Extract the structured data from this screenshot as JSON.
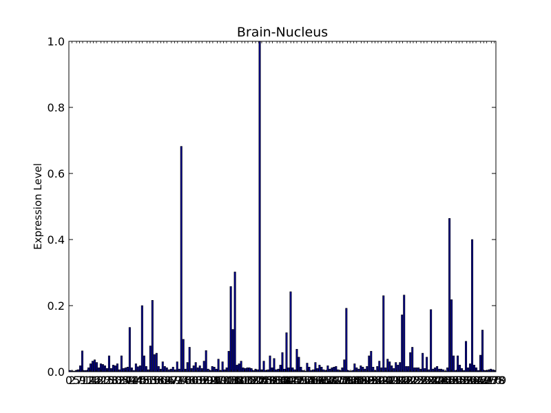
{
  "chart_data": {
    "type": "bar",
    "title": "Brain-Nucleus",
    "xlabel": "",
    "ylabel": "Expression Level",
    "ylim": [
      0,
      1.0
    ],
    "yticks": [
      "0.0",
      "0.2",
      "0.4",
      "0.6",
      "0.8",
      "1.0"
    ],
    "xlim": [
      0,
      279
    ],
    "xtick_labels": [
      "0",
      "2",
      "5",
      "7",
      "9",
      "12",
      "14",
      "16",
      "18",
      "21",
      "23",
      "25",
      "28",
      "30",
      "32",
      "35",
      "37",
      "39",
      "41",
      "44",
      "46",
      "48",
      "51",
      "53",
      "55",
      "58",
      "60",
      "62",
      "64",
      "67",
      "69",
      "71",
      "74",
      "76",
      "78",
      "80",
      "83",
      "85",
      "87",
      "90",
      "92",
      "94",
      "97",
      "99",
      "101",
      "103",
      "106",
      "108",
      "110",
      "113",
      "115",
      "117",
      "120",
      "122",
      "124",
      "126",
      "129",
      "131",
      "133",
      "136",
      "138",
      "140",
      "142",
      "145",
      "147",
      "149",
      "152",
      "154",
      "156",
      "159",
      "161",
      "163",
      "165",
      "168",
      "170",
      "172",
      "175",
      "177",
      "179",
      "182",
      "184",
      "186",
      "188",
      "191",
      "193",
      "195",
      "198",
      "200",
      "202",
      "204",
      "207",
      "209",
      "211",
      "214",
      "216",
      "218",
      "221",
      "223",
      "225",
      "227",
      "230",
      "232",
      "234",
      "237",
      "239",
      "241",
      "243",
      "246",
      "248",
      "250",
      "253",
      "255",
      "257",
      "260",
      "262",
      "264",
      "266",
      "269",
      "271",
      "273",
      "276",
      "278",
      "279"
    ],
    "grid": false,
    "bar_color": "#00008b",
    "values": [
      0.004,
      0.003,
      0.002,
      0.004,
      0.006,
      0.018,
      0.063,
      0.004,
      0.004,
      0.012,
      0.024,
      0.032,
      0.036,
      0.028,
      0.012,
      0.024,
      0.022,
      0.018,
      0.01,
      0.048,
      0.01,
      0.02,
      0.018,
      0.024,
      0.006,
      0.048,
      0.01,
      0.012,
      0.014,
      0.134,
      0.012,
      0.004,
      0.024,
      0.015,
      0.018,
      0.2,
      0.048,
      0.016,
      0.006,
      0.078,
      0.216,
      0.052,
      0.056,
      0.016,
      0.008,
      0.03,
      0.016,
      0.012,
      0.006,
      0.008,
      0.014,
      0.006,
      0.03,
      0.008,
      0.682,
      0.098,
      0.008,
      0.028,
      0.074,
      0.01,
      0.018,
      0.028,
      0.012,
      0.018,
      0.01,
      0.032,
      0.064,
      0.008,
      0.004,
      0.016,
      0.014,
      0.008,
      0.038,
      0.004,
      0.03,
      0.006,
      0.012,
      0.062,
      0.258,
      0.128,
      0.302,
      0.02,
      0.024,
      0.032,
      0.012,
      0.01,
      0.012,
      0.012,
      0.01,
      0.004,
      0.008,
      0.006,
      1.0,
      0.006,
      0.032,
      0.004,
      0.006,
      0.048,
      0.012,
      0.04,
      0.006,
      0.008,
      0.02,
      0.058,
      0.008,
      0.118,
      0.012,
      0.242,
      0.012,
      0.006,
      0.068,
      0.044,
      0.014,
      0.004,
      0.002,
      0.026,
      0.014,
      0.004,
      0.006,
      0.028,
      0.01,
      0.02,
      0.014,
      0.006,
      0.004,
      0.018,
      0.008,
      0.012,
      0.014,
      0.016,
      0.006,
      0.004,
      0.012,
      0.036,
      0.192,
      0.004,
      0.002,
      0.004,
      0.024,
      0.012,
      0.008,
      0.018,
      0.014,
      0.008,
      0.016,
      0.048,
      0.062,
      0.014,
      0.004,
      0.016,
      0.032,
      0.012,
      0.23,
      0.012,
      0.038,
      0.03,
      0.018,
      0.01,
      0.028,
      0.02,
      0.028,
      0.172,
      0.232,
      0.016,
      0.016,
      0.058,
      0.074,
      0.012,
      0.012,
      0.012,
      0.008,
      0.056,
      0.01,
      0.044,
      0.006,
      0.188,
      0.008,
      0.012,
      0.016,
      0.008,
      0.008,
      0.006,
      0.002,
      0.012,
      0.464,
      0.218,
      0.048,
      0.004,
      0.048,
      0.02,
      0.01,
      0.004,
      0.092,
      0.012,
      0.024,
      0.4,
      0.02,
      0.012,
      0.004,
      0.05,
      0.126,
      0.004,
      0.004,
      0.006,
      0.008,
      0.006,
      0.004
    ]
  }
}
